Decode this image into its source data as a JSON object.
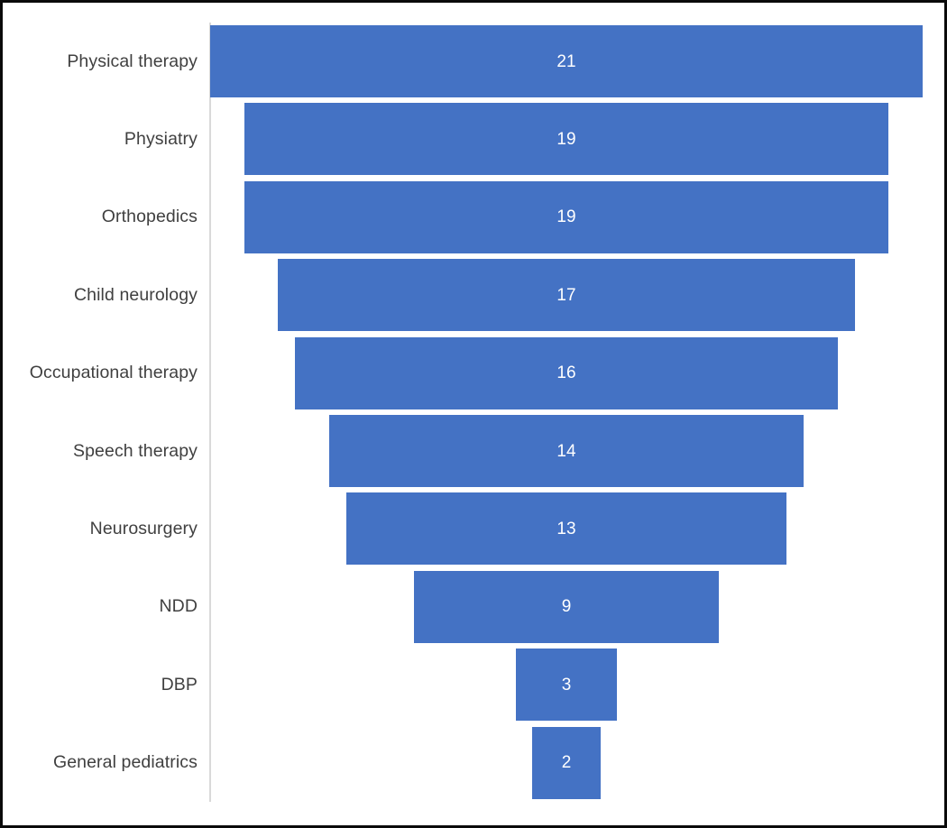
{
  "chart_data": {
    "type": "bar",
    "subtype": "funnel-horizontal-centered",
    "title": "",
    "categories": [
      "Physical therapy",
      "Physiatry",
      "Orthopedics",
      "Child neurology",
      "Occupational therapy",
      "Speech therapy",
      "Neurosurgery",
      "NDD",
      "DBP",
      "General pediatrics"
    ],
    "values": [
      21,
      19,
      19,
      17,
      16,
      14,
      13,
      9,
      3,
      2
    ],
    "xlabel": "",
    "ylabel": "",
    "xlim": [
      0,
      21
    ],
    "grid": "off",
    "legend": "none",
    "data_labels": "inside-center",
    "colors": {
      "bar_fill": "#4472C4",
      "value_text": "#FFFFFF",
      "category_text": "#404040",
      "axis_line": "#D9D9D9",
      "figure_border": "#0A0A0A",
      "background": "#FFFFFF"
    }
  }
}
